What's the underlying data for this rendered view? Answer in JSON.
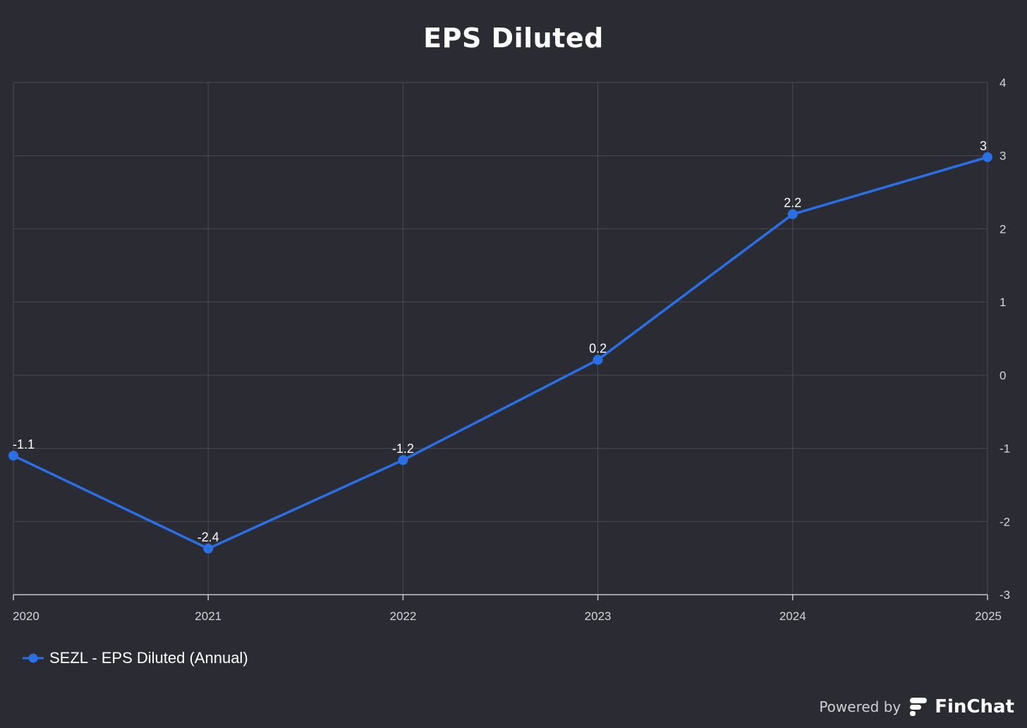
{
  "chart_data": {
    "type": "line",
    "title": "EPS Diluted",
    "x": [
      "2020",
      "2021",
      "2022",
      "2023",
      "2024",
      "2025"
    ],
    "series": [
      {
        "name": "SEZL - EPS Diluted (Annual)",
        "values": [
          -1.1,
          -2.37,
          -1.16,
          0.21,
          2.2,
          2.98
        ],
        "labels": [
          "-1.1",
          "-2.4",
          "-1.2",
          "0.2",
          "2.2",
          "3"
        ],
        "color": "#2b6fe6"
      }
    ],
    "yticks": [
      "4",
      "3",
      "2",
      "1",
      "0",
      "-1",
      "-2",
      "-3"
    ],
    "ylim": [
      -3,
      4
    ],
    "y_axis_side": "right",
    "grid": true,
    "legend_position": "bottom-left"
  },
  "branding": {
    "powered_by": "Powered by",
    "name": "FinChat"
  },
  "colors": {
    "background": "#2a2b33",
    "grid": "#4a4b55",
    "series": "#2b6fe6"
  }
}
